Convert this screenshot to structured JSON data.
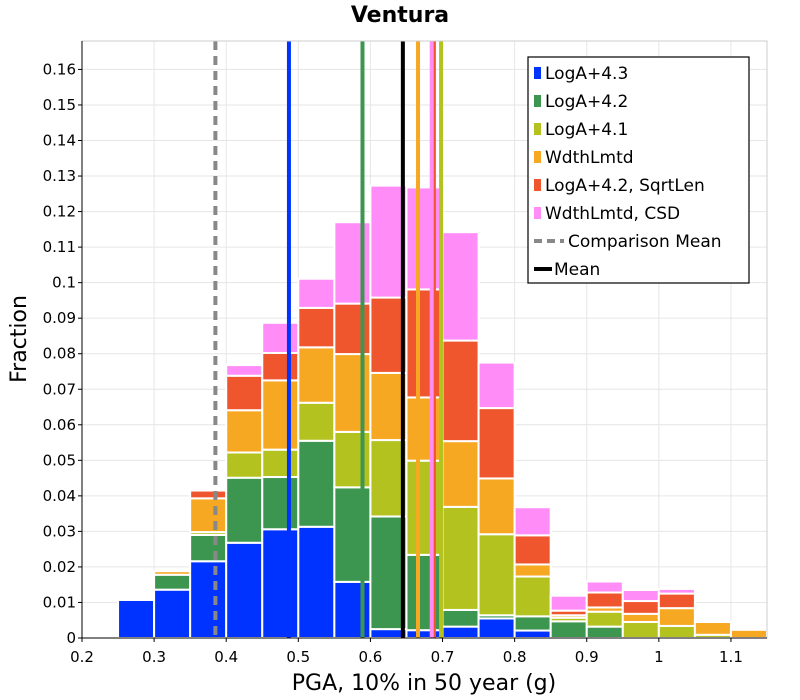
{
  "chart_data": {
    "type": "bar",
    "stacked": true,
    "title": "Ventura",
    "xlabel": "PGA, 10% in 50 year (g)",
    "ylabel": "Fraction",
    "xlim": [
      0.2,
      1.15
    ],
    "ylim": [
      0,
      0.168
    ],
    "xticks": [
      "0.2",
      "0.3",
      "0.4",
      "0.5",
      "0.6",
      "0.7",
      "0.8",
      "0.9",
      "1",
      "1.1"
    ],
    "yticks": [
      "0",
      "0.01",
      "0.02",
      "0.03",
      "0.04",
      "0.05",
      "0.06",
      "0.07",
      "0.08",
      "0.09",
      "0.1",
      "0.11",
      "0.12",
      "0.13",
      "0.14",
      "0.15",
      "0.16"
    ],
    "bin_width": 0.05,
    "bin_centers": [
      0.275,
      0.325,
      0.375,
      0.425,
      0.475,
      0.525,
      0.575,
      0.625,
      0.675,
      0.725,
      0.775,
      0.825,
      0.875,
      0.925,
      0.975,
      1.025,
      1.075,
      1.125
    ],
    "series": [
      {
        "name": "LogA+4.3",
        "color": "#0033ff",
        "values": [
          0.0107,
          0.0136,
          0.0216,
          0.0268,
          0.0306,
          0.0313,
          0.0158,
          0.0025,
          0.0022,
          0.0032,
          0.0055,
          0.0021,
          0,
          0,
          0,
          0,
          0,
          0
        ]
      },
      {
        "name": "LogA+4.2",
        "color": "#3d9650",
        "values": [
          0,
          0.0042,
          0.0074,
          0.0183,
          0.0147,
          0.0242,
          0.0266,
          0.0317,
          0.0212,
          0.0047,
          0.0009,
          0.004,
          0.0047,
          0.0032,
          0,
          0,
          0,
          0
        ]
      },
      {
        "name": "LogA+4.1",
        "color": "#b3c21f",
        "values": [
          0,
          0,
          0.0008,
          0.0071,
          0.0077,
          0.0107,
          0.0156,
          0.0215,
          0.0265,
          0.029,
          0.0228,
          0.0112,
          0.001,
          0.0042,
          0.0045,
          0.0034,
          0.0009,
          0
        ]
      },
      {
        "name": "WdthLmtd",
        "color": "#f7a823",
        "values": [
          0,
          0.001,
          0.0095,
          0.0119,
          0.0195,
          0.0156,
          0.0219,
          0.0189,
          0.0178,
          0.0185,
          0.0157,
          0.0034,
          0.0007,
          0.0012,
          0.0023,
          0.005,
          0.0036,
          0.0023
        ]
      },
      {
        "name": "LogA+4.2, SqrtLen",
        "color": "#f0562d",
        "values": [
          0,
          0,
          0.0022,
          0.0097,
          0.0077,
          0.0111,
          0.0142,
          0.0212,
          0.0304,
          0.0283,
          0.0198,
          0.0082,
          0.0013,
          0.0042,
          0.0036,
          0.0041,
          0,
          0
        ]
      },
      {
        "name": "WdthLmtd, CSD",
        "color": "#ff8cf7",
        "values": [
          0,
          0,
          0.0002,
          0.003,
          0.0085,
          0.0082,
          0.0229,
          0.0315,
          0.0287,
          0.0305,
          0.0128,
          0.0079,
          0.0042,
          0.0031,
          0.0031,
          0.0013,
          0,
          0
        ]
      }
    ],
    "vlines": [
      {
        "name": "LogA+4.3 mean",
        "x": 0.487,
        "color": "#0033ff",
        "style": "solid",
        "top": 0.168
      },
      {
        "name": "LogA+4.2 mean",
        "x": 0.589,
        "color": "#3d9650",
        "style": "solid",
        "top": 0.168
      },
      {
        "name": "WdthLmtd mean",
        "x": 0.666,
        "color": "#f7a823",
        "style": "solid",
        "top": 0.168
      },
      {
        "name": "LogA+4.2, SqrtLen mean",
        "x": 0.688,
        "color": "#f0562d",
        "style": "solid",
        "top": 0.168
      },
      {
        "name": "WdthLmtd, CSD mean",
        "x": 0.685,
        "color": "#ff8cf7",
        "style": "solid",
        "top": 0.168
      },
      {
        "name": "LogA+4.1 mean",
        "x": 0.698,
        "color": "#b3c21f",
        "style": "solid",
        "top": 0.168
      },
      {
        "name": "Comparison Mean",
        "x": 0.385,
        "color": "#888888",
        "style": "dashed",
        "top": 0.168
      },
      {
        "name": "Mean",
        "x": 0.645,
        "color": "#000000",
        "style": "solid",
        "top": 0.168
      }
    ],
    "legend": {
      "position": "top-right",
      "entries": [
        {
          "label": "LogA+4.3",
          "color": "#0033ff",
          "kind": "bar"
        },
        {
          "label": "LogA+4.2",
          "color": "#3d9650",
          "kind": "bar"
        },
        {
          "label": "LogA+4.1",
          "color": "#b3c21f",
          "kind": "bar"
        },
        {
          "label": "WdthLmtd",
          "color": "#f7a823",
          "kind": "bar"
        },
        {
          "label": "LogA+4.2, SqrtLen",
          "color": "#f0562d",
          "kind": "bar"
        },
        {
          "label": "WdthLmtd, CSD",
          "color": "#ff8cf7",
          "kind": "bar"
        },
        {
          "label": "Comparison Mean",
          "color": "#888888",
          "kind": "dashed"
        },
        {
          "label": "Mean",
          "color": "#000000",
          "kind": "solid"
        }
      ]
    },
    "grid": true
  }
}
